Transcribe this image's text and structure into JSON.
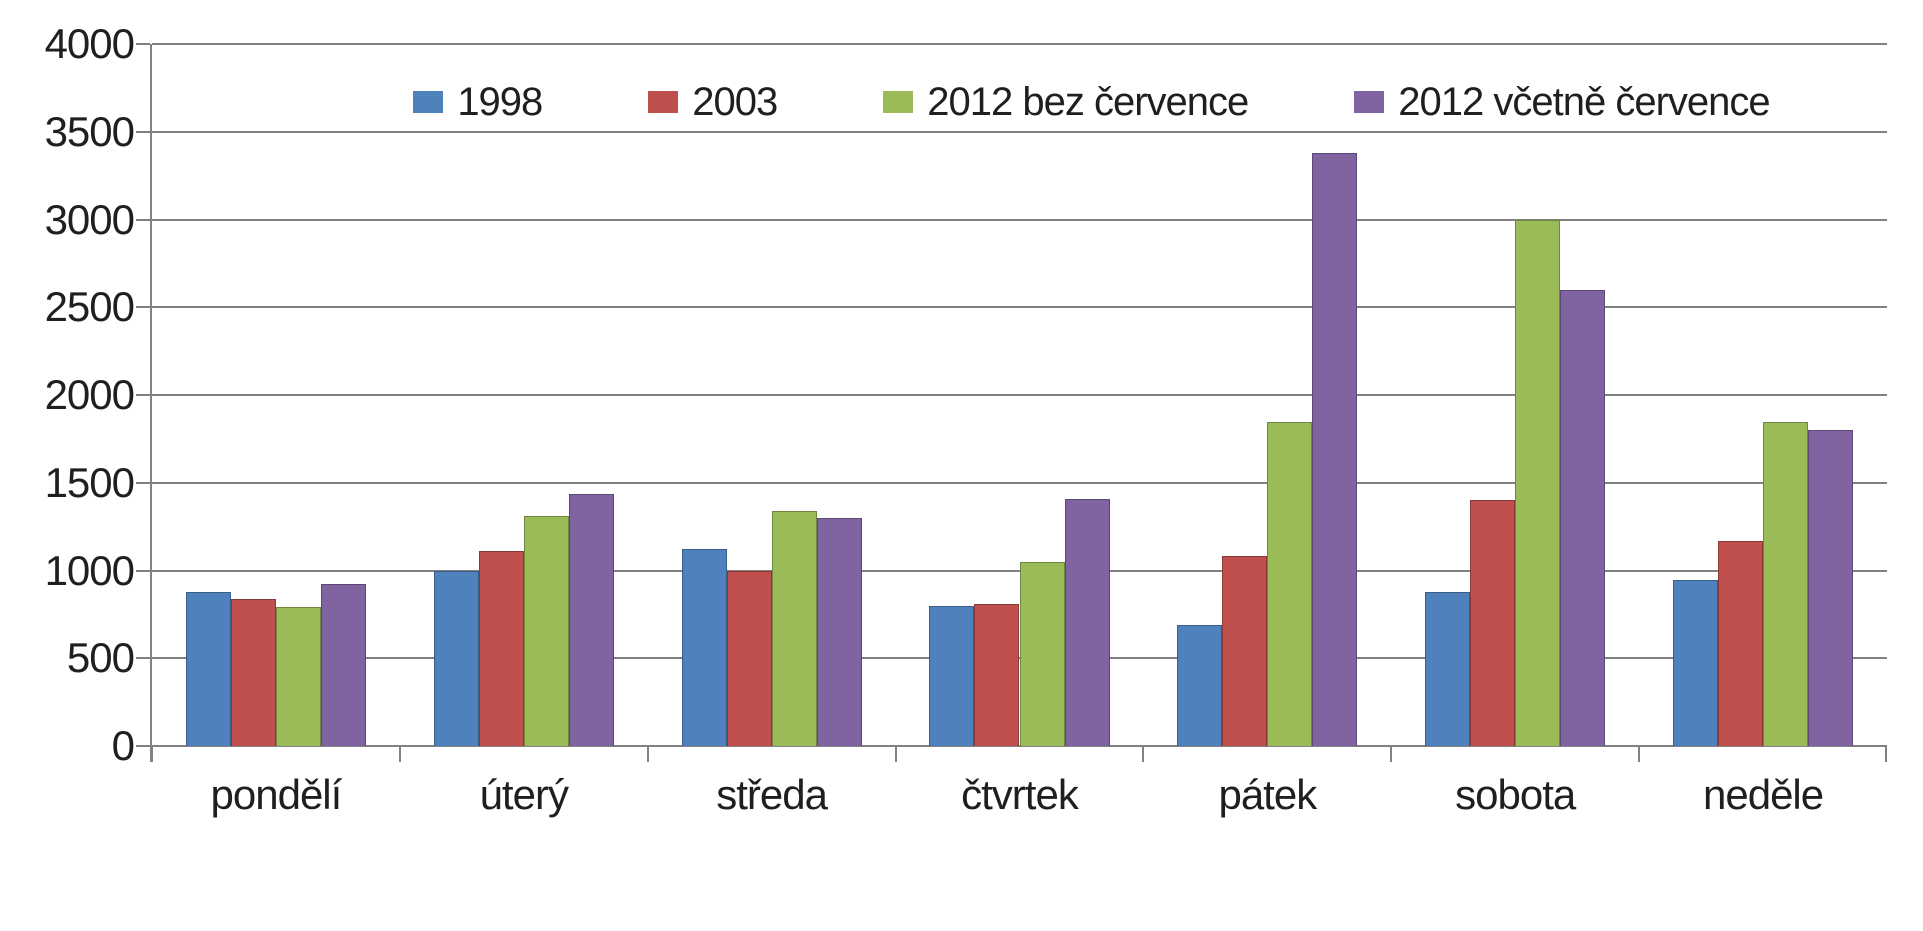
{
  "chart_data": {
    "type": "bar",
    "title": "",
    "xlabel": "",
    "ylabel": "",
    "categories": [
      "pondělí",
      "úterý",
      "středa",
      "čtvrtek",
      "pátek",
      "sobota",
      "neděle"
    ],
    "series": [
      {
        "name": "1998",
        "color": "#4F81BD",
        "values": [
          875,
          1000,
          1120,
          800,
          690,
          875,
          945
        ]
      },
      {
        "name": "2003",
        "color": "#C0504D",
        "values": [
          840,
          1110,
          1000,
          810,
          1085,
          1400,
          1170
        ]
      },
      {
        "name": "2012 bez července",
        "color": "#9BBB59",
        "values": [
          790,
          1310,
          1340,
          1050,
          1845,
          3000,
          1845
        ]
      },
      {
        "name": "2012 včetně července",
        "color": "#8064A2",
        "values": [
          925,
          1435,
          1300,
          1410,
          3380,
          2600,
          1800
        ]
      }
    ],
    "ylim": [
      0,
      4000
    ],
    "ytick_step": 500,
    "ytick_labels": [
      "0",
      "500",
      "1000",
      "1500",
      "2000",
      "2500",
      "3000",
      "3500",
      "4000"
    ],
    "grid": true,
    "legend_position": "top-center-horizontal"
  },
  "colors": {
    "gridline": "#818181",
    "text": "#1f1f1f",
    "background": "#FFFFFF"
  }
}
